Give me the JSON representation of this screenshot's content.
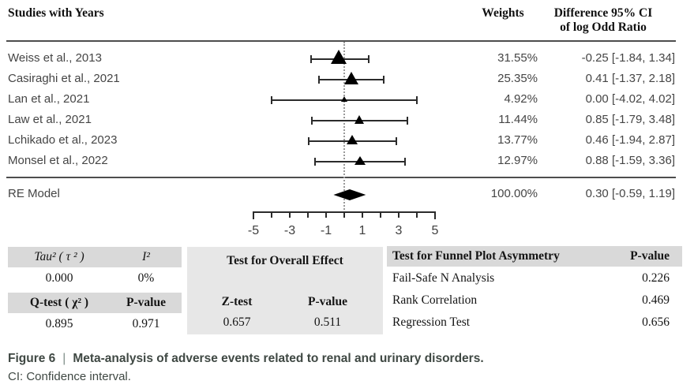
{
  "header": {
    "studies_col": "Studies with Years",
    "weights_col": "Weights",
    "difference_col_line1": "Difference 95% CI",
    "difference_col_line2": "of log Odd Ratio"
  },
  "chart_data": {
    "type": "forest",
    "title": "Meta-analysis of adverse events related to renal and urinary disorders",
    "effect_measure": "Difference of log Odd Ratio",
    "axis": {
      "min": -5,
      "max": 5,
      "tick_step": 1,
      "labeled_ticks": [
        -5,
        -3,
        -1,
        1,
        3,
        5
      ],
      "zero_reference_line": 0
    },
    "studies": [
      {
        "label": "Weiss et al., 2013",
        "weight_text": "31.55%",
        "weight": 31.55,
        "estimate": -0.25,
        "ci_low": -1.84,
        "ci_high": 1.34,
        "display": "-0.25 [-1.84, 1.34]"
      },
      {
        "label": "Casiraghi et al., 2021",
        "weight_text": "25.35%",
        "weight": 25.35,
        "estimate": 0.41,
        "ci_low": -1.37,
        "ci_high": 2.18,
        "display": "0.41 [-1.37, 2.18]"
      },
      {
        "label": "Lan et al., 2021",
        "weight_text": "4.92%",
        "weight": 4.92,
        "estimate": 0.0,
        "ci_low": -4.02,
        "ci_high": 4.02,
        "display": "0.00 [-4.02, 4.02]"
      },
      {
        "label": "Law et al., 2021",
        "weight_text": "11.44%",
        "weight": 11.44,
        "estimate": 0.85,
        "ci_low": -1.79,
        "ci_high": 3.48,
        "display": "0.85 [-1.79, 3.48]"
      },
      {
        "label": "Lchikado et al., 2023",
        "weight_text": "13.77%",
        "weight": 13.77,
        "estimate": 0.46,
        "ci_low": -1.94,
        "ci_high": 2.87,
        "display": "0.46 [-1.94, 2.87]"
      },
      {
        "label": "Monsel et al., 2022",
        "weight_text": "12.97%",
        "weight": 12.97,
        "estimate": 0.88,
        "ci_low": -1.59,
        "ci_high": 3.36,
        "display": "0.88 [-1.59, 3.36]"
      }
    ],
    "summary": {
      "label": "RE Model",
      "weight_text": "100.00%",
      "weight": 100.0,
      "estimate": 0.3,
      "ci_low": -0.59,
      "ci_high": 1.19,
      "display": "0.30 [-0.59, 1.19]"
    }
  },
  "stats": {
    "heterogeneity": {
      "tau2_label": "Tau² ( τ ² )",
      "i2_label": "I²",
      "tau2_value": "0.000",
      "i2_value": "0%",
      "qtest_label": "Q-test ( χ² )",
      "qtest_pvalue_label": "P-value",
      "qtest_value": "0.895",
      "qtest_pvalue": "0.971"
    },
    "overall_effect": {
      "title": "Test for Overall Effect",
      "ztest_label": "Z-test",
      "pvalue_label": "P-value",
      "ztest_value": "0.657",
      "pvalue": "0.511"
    },
    "funnel": {
      "title": "Test for Funnel Plot Asymmetry",
      "pvalue_label": "P-value",
      "rows": [
        {
          "label": "Fail-Safe N Analysis",
          "value": "0.226"
        },
        {
          "label": "Rank Correlation",
          "value": "0.469"
        },
        {
          "label": "Regression Test",
          "value": "0.656"
        }
      ]
    }
  },
  "caption": {
    "figure_label": "Figure 6",
    "separator": "|",
    "title": "Meta-analysis of adverse events related to renal and urinary disorders.",
    "note": "CI: Confidence interval."
  },
  "colors": {
    "marker": "#000000",
    "text_gray": "#454545",
    "table_header_bg": "#d9d9d9",
    "panel_bg": "#e7e7e7",
    "caption_text": "#3f4843"
  }
}
